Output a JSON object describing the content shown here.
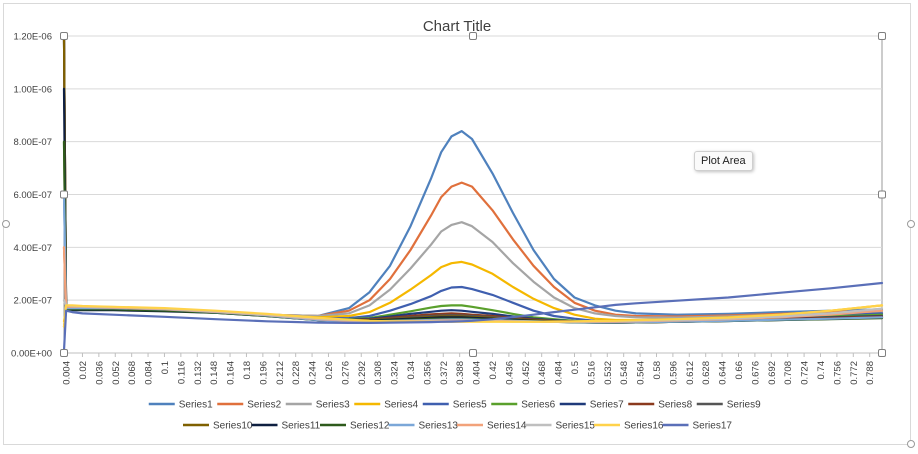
{
  "chart_data": {
    "type": "line",
    "title": "Chart Title",
    "xlabel": "",
    "ylabel": "",
    "ylim": [
      0,
      1.2e-06
    ],
    "y_ticks": [
      "0.00E+00",
      "2.00E-07",
      "4.00E-07",
      "6.00E-07",
      "8.00E-07",
      "1.00E-06",
      "1.20E-06"
    ],
    "x_ticks": [
      "0.004",
      "0.02",
      "0.036",
      "0.052",
      "0.068",
      "0.084",
      "0.1",
      "0.116",
      "0.132",
      "0.148",
      "0.164",
      "0.18",
      "0.196",
      "0.212",
      "0.228",
      "0.244",
      "0.26",
      "0.276",
      "0.292",
      "0.308",
      "0.324",
      "0.34",
      "0.356",
      "0.372",
      "0.388",
      "0.404",
      "0.42",
      "0.436",
      "0.452",
      "0.468",
      "0.484",
      "0.5",
      "0.516",
      "0.532",
      "0.548",
      "0.564",
      "0.58",
      "0.596",
      "0.612",
      "0.628",
      "0.644",
      "0.66",
      "0.676",
      "0.692",
      "0.708",
      "0.724",
      "0.74",
      "0.756",
      "0.772",
      "0.788"
    ],
    "grid": true,
    "legend_position": "bottom",
    "x": [
      0.002,
      0.004,
      0.01,
      0.02,
      0.05,
      0.1,
      0.15,
      0.2,
      0.25,
      0.28,
      0.3,
      0.32,
      0.34,
      0.36,
      0.37,
      0.38,
      0.39,
      0.4,
      0.42,
      0.44,
      0.46,
      0.48,
      0.5,
      0.52,
      0.54,
      0.56,
      0.6,
      0.65,
      0.7,
      0.75,
      0.8
    ],
    "series": [
      {
        "name": "Series1",
        "color": "#4F81BD",
        "values": [
          6e-07,
          1.7e-07,
          1.75e-07,
          1.75e-07,
          1.72e-07,
          1.65e-07,
          1.55e-07,
          1.45e-07,
          1.4e-07,
          1.7e-07,
          2.3e-07,
          3.3e-07,
          4.8e-07,
          6.6e-07,
          7.6e-07,
          8.2e-07,
          8.4e-07,
          8.1e-07,
          6.8e-07,
          5.3e-07,
          3.9e-07,
          2.8e-07,
          2.1e-07,
          1.8e-07,
          1.6e-07,
          1.5e-07,
          1.45e-07,
          1.48e-07,
          1.55e-07,
          1.6e-07,
          1.65e-07
        ]
      },
      {
        "name": "Series2",
        "color": "#E0703C",
        "values": [
          4e-07,
          1.7e-07,
          1.75e-07,
          1.75e-07,
          1.72e-07,
          1.65e-07,
          1.55e-07,
          1.45e-07,
          1.4e-07,
          1.6e-07,
          2e-07,
          2.8e-07,
          3.9e-07,
          5.2e-07,
          5.9e-07,
          6.3e-07,
          6.45e-07,
          6.3e-07,
          5.4e-07,
          4.3e-07,
          3.3e-07,
          2.5e-07,
          1.9e-07,
          1.6e-07,
          1.45e-07,
          1.4e-07,
          1.38e-07,
          1.42e-07,
          1.48e-07,
          1.55e-07,
          1.6e-07
        ]
      },
      {
        "name": "Series3",
        "color": "#A5A5A5",
        "values": [
          2e-07,
          1.75e-07,
          1.75e-07,
          1.75e-07,
          1.72e-07,
          1.65e-07,
          1.55e-07,
          1.45e-07,
          1.4e-07,
          1.5e-07,
          1.8e-07,
          2.4e-07,
          3.2e-07,
          4.1e-07,
          4.6e-07,
          4.85e-07,
          4.95e-07,
          4.8e-07,
          4.2e-07,
          3.4e-07,
          2.7e-07,
          2.1e-07,
          1.7e-07,
          1.5e-07,
          1.4e-07,
          1.35e-07,
          1.34e-07,
          1.38e-07,
          1.45e-07,
          1.5e-07,
          1.55e-07
        ]
      },
      {
        "name": "Series4",
        "color": "#F5B800",
        "values": [
          1.2e-07,
          1.65e-07,
          1.7e-07,
          1.7e-07,
          1.7e-07,
          1.65e-07,
          1.55e-07,
          1.45e-07,
          1.35e-07,
          1.4e-07,
          1.55e-07,
          1.9e-07,
          2.4e-07,
          2.95e-07,
          3.25e-07,
          3.4e-07,
          3.45e-07,
          3.35e-07,
          3e-07,
          2.5e-07,
          2.05e-07,
          1.7e-07,
          1.45e-07,
          1.3e-07,
          1.25e-07,
          1.25e-07,
          1.28e-07,
          1.35e-07,
          1.45e-07,
          1.6e-07,
          1.8e-07
        ]
      },
      {
        "name": "Series5",
        "color": "#3F5FAF",
        "values": [
          1e-07,
          1.6e-07,
          1.65e-07,
          1.65e-07,
          1.65e-07,
          1.62e-07,
          1.55e-07,
          1.45e-07,
          1.3e-07,
          1.32e-07,
          1.4e-07,
          1.6e-07,
          1.85e-07,
          2.15e-07,
          2.35e-07,
          2.48e-07,
          2.5e-07,
          2.42e-07,
          2.2e-07,
          1.9e-07,
          1.6e-07,
          1.4e-07,
          1.3e-07,
          1.22e-07,
          1.2e-07,
          1.2e-07,
          1.22e-07,
          1.28e-07,
          1.35e-07,
          1.42e-07,
          1.5e-07
        ]
      },
      {
        "name": "Series6",
        "color": "#5AA02C",
        "values": [
          8e-07,
          1.65e-07,
          1.65e-07,
          1.65e-07,
          1.65e-07,
          1.6e-07,
          1.55e-07,
          1.42e-07,
          1.28e-07,
          1.28e-07,
          1.32e-07,
          1.45e-07,
          1.58e-07,
          1.72e-07,
          1.78e-07,
          1.8e-07,
          1.8e-07,
          1.75e-07,
          1.62e-07,
          1.48e-07,
          1.35e-07,
          1.28e-07,
          1.22e-07,
          1.2e-07,
          1.18e-07,
          1.2e-07,
          1.22e-07,
          1.28e-07,
          1.32e-07,
          1.38e-07,
          1.45e-07
        ]
      },
      {
        "name": "Series7",
        "color": "#1F3A7A",
        "values": [
          1.2e-06,
          1.6e-07,
          1.65e-07,
          1.65e-07,
          1.65e-07,
          1.6e-07,
          1.55e-07,
          1.42e-07,
          1.28e-07,
          1.26e-07,
          1.3e-07,
          1.38e-07,
          1.48e-07,
          1.56e-07,
          1.6e-07,
          1.62e-07,
          1.6e-07,
          1.56e-07,
          1.48e-07,
          1.38e-07,
          1.3e-07,
          1.24e-07,
          1.2e-07,
          1.18e-07,
          1.17e-07,
          1.18e-07,
          1.2e-07,
          1.25e-07,
          1.3e-07,
          1.35e-07,
          1.4e-07
        ]
      },
      {
        "name": "Series8",
        "color": "#8B3A1E",
        "values": [
          1.2e-06,
          1.65e-07,
          1.65e-07,
          1.65e-07,
          1.65e-07,
          1.6e-07,
          1.55e-07,
          1.42e-07,
          1.26e-07,
          1.24e-07,
          1.27e-07,
          1.33e-07,
          1.4e-07,
          1.46e-07,
          1.48e-07,
          1.5e-07,
          1.48e-07,
          1.45e-07,
          1.4e-07,
          1.33e-07,
          1.27e-07,
          1.22e-07,
          1.19e-07,
          1.17e-07,
          1.16e-07,
          1.17e-07,
          1.2e-07,
          1.24e-07,
          1.28e-07,
          1.33e-07,
          1.38e-07
        ]
      },
      {
        "name": "Series9",
        "color": "#555555",
        "values": [
          1.2e-06,
          1.6e-07,
          1.65e-07,
          1.65e-07,
          1.65e-07,
          1.6e-07,
          1.55e-07,
          1.42e-07,
          1.26e-07,
          1.23e-07,
          1.25e-07,
          1.3e-07,
          1.35e-07,
          1.4e-07,
          1.42e-07,
          1.43e-07,
          1.42e-07,
          1.4e-07,
          1.36e-07,
          1.3e-07,
          1.25e-07,
          1.21e-07,
          1.18e-07,
          1.16e-07,
          1.15e-07,
          1.16e-07,
          1.18e-07,
          1.22e-07,
          1.26e-07,
          1.3e-07,
          1.35e-07
        ]
      },
      {
        "name": "Series10",
        "color": "#7F6000",
        "values": [
          1.2e-06,
          1.7e-07,
          1.7e-07,
          1.7e-07,
          1.7e-07,
          1.65e-07,
          1.55e-07,
          1.45e-07,
          1.3e-07,
          1.25e-07,
          1.25e-07,
          1.28e-07,
          1.32e-07,
          1.36e-07,
          1.38e-07,
          1.38e-07,
          1.38e-07,
          1.36e-07,
          1.33e-07,
          1.28e-07,
          1.24e-07,
          1.2e-07,
          1.18e-07,
          1.16e-07,
          1.15e-07,
          1.16e-07,
          1.18e-07,
          1.22e-07,
          1.26e-07,
          1.3e-07,
          1.34e-07
        ]
      },
      {
        "name": "Series11",
        "color": "#0E1F40",
        "values": [
          1e-06,
          1.6e-07,
          1.62e-07,
          1.62e-07,
          1.62e-07,
          1.58e-07,
          1.52e-07,
          1.4e-07,
          1.25e-07,
          1.22e-07,
          1.23e-07,
          1.26e-07,
          1.3e-07,
          1.33e-07,
          1.35e-07,
          1.35e-07,
          1.35e-07,
          1.33e-07,
          1.3e-07,
          1.26e-07,
          1.22e-07,
          1.19e-07,
          1.17e-07,
          1.15e-07,
          1.15e-07,
          1.16e-07,
          1.18e-07,
          1.21e-07,
          1.25e-07,
          1.29e-07,
          1.34e-07
        ]
      },
      {
        "name": "Series12",
        "color": "#2E5A1C",
        "values": [
          8e-07,
          1.65e-07,
          1.65e-07,
          1.65e-07,
          1.65e-07,
          1.6e-07,
          1.52e-07,
          1.4e-07,
          1.24e-07,
          1.2e-07,
          1.21e-07,
          1.23e-07,
          1.26e-07,
          1.29e-07,
          1.3e-07,
          1.3e-07,
          1.3e-07,
          1.29e-07,
          1.26e-07,
          1.23e-07,
          1.2e-07,
          1.18e-07,
          1.16e-07,
          1.15e-07,
          1.15e-07,
          1.16e-07,
          1.18e-07,
          1.21e-07,
          1.25e-07,
          1.28e-07,
          1.32e-07
        ]
      },
      {
        "name": "Series13",
        "color": "#7BA7D8",
        "values": [
          6e-07,
          1.7e-07,
          1.7e-07,
          1.7e-07,
          1.7e-07,
          1.65e-07,
          1.55e-07,
          1.42e-07,
          1.25e-07,
          1.2e-07,
          1.2e-07,
          1.21e-07,
          1.23e-07,
          1.25e-07,
          1.26e-07,
          1.27e-07,
          1.27e-07,
          1.26e-07,
          1.24e-07,
          1.22e-07,
          1.2e-07,
          1.18e-07,
          1.17e-07,
          1.16e-07,
          1.16e-07,
          1.17e-07,
          1.19e-07,
          1.22e-07,
          1.26e-07,
          1.3e-07,
          1.35e-07
        ]
      },
      {
        "name": "Series14",
        "color": "#F2A27A",
        "values": [
          4e-07,
          1.75e-07,
          1.75e-07,
          1.75e-07,
          1.72e-07,
          1.66e-07,
          1.56e-07,
          1.44e-07,
          1.28e-07,
          1.22e-07,
          1.2e-07,
          1.2e-07,
          1.21e-07,
          1.22e-07,
          1.23e-07,
          1.23e-07,
          1.23e-07,
          1.22e-07,
          1.21e-07,
          1.2e-07,
          1.19e-07,
          1.18e-07,
          1.18e-07,
          1.18e-07,
          1.19e-07,
          1.2e-07,
          1.23e-07,
          1.28e-07,
          1.35e-07,
          1.45e-07,
          1.6e-07
        ]
      },
      {
        "name": "Series15",
        "color": "#BFBFBF",
        "values": [
          2e-07,
          1.8e-07,
          1.78e-07,
          1.76e-07,
          1.74e-07,
          1.68e-07,
          1.58e-07,
          1.45e-07,
          1.3e-07,
          1.24e-07,
          1.21e-07,
          1.2e-07,
          1.2e-07,
          1.2e-07,
          1.2e-07,
          1.2e-07,
          1.2e-07,
          1.2e-07,
          1.2e-07,
          1.19e-07,
          1.19e-07,
          1.19e-07,
          1.19e-07,
          1.2e-07,
          1.21e-07,
          1.22e-07,
          1.25e-07,
          1.3e-07,
          1.38e-07,
          1.5e-07,
          1.68e-07
        ]
      },
      {
        "name": "Series16",
        "color": "#FFD24A",
        "values": [
          1e-07,
          1.8e-07,
          1.8e-07,
          1.78e-07,
          1.75e-07,
          1.7e-07,
          1.6e-07,
          1.48e-07,
          1.33e-07,
          1.26e-07,
          1.22e-07,
          1.2e-07,
          1.19e-07,
          1.18e-07,
          1.18e-07,
          1.18e-07,
          1.18e-07,
          1.18e-07,
          1.18e-07,
          1.18e-07,
          1.18e-07,
          1.19e-07,
          1.2e-07,
          1.21e-07,
          1.22e-07,
          1.24e-07,
          1.28e-07,
          1.34e-07,
          1.45e-07,
          1.6e-07,
          1.8e-07
        ]
      },
      {
        "name": "Series17",
        "color": "#5A6FB8",
        "values": [
          1e-08,
          1.6e-07,
          1.55e-07,
          1.5e-07,
          1.45e-07,
          1.37e-07,
          1.28e-07,
          1.2e-07,
          1.15e-07,
          1.14e-07,
          1.14e-07,
          1.15e-07,
          1.16e-07,
          1.17e-07,
          1.18e-07,
          1.19e-07,
          1.2e-07,
          1.22e-07,
          1.28e-07,
          1.36e-07,
          1.45e-07,
          1.55e-07,
          1.64e-07,
          1.73e-07,
          1.82e-07,
          1.88e-07,
          1.98e-07,
          2.1e-07,
          2.28e-07,
          2.45e-07,
          2.65e-07
        ]
      }
    ]
  },
  "tooltip": {
    "label": "Plot Area"
  }
}
